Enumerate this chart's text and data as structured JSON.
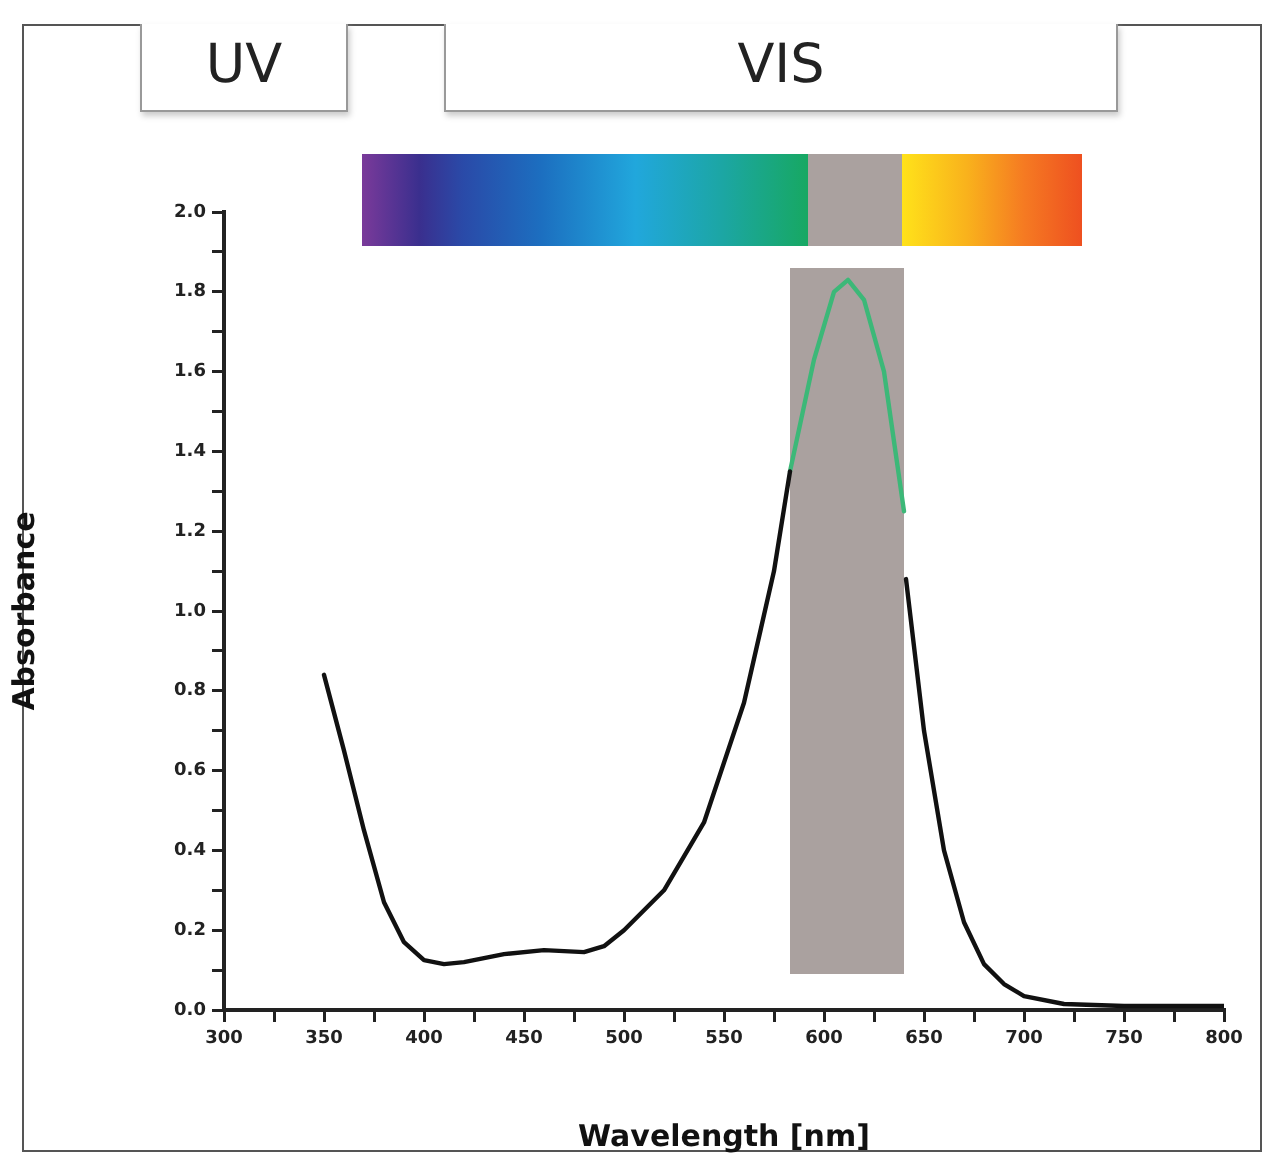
{
  "chart_data": {
    "type": "line",
    "xlabel": "Wavelength [nm]",
    "ylabel": "Absorbance",
    "annotations": [
      "UV",
      "VIS"
    ],
    "xlim": [
      300,
      800
    ],
    "xticks": [
      300,
      {
        "value": 325,
        "label": null
      },
      350,
      {
        "value": 375,
        "label": null
      },
      400,
      {
        "value": 425,
        "label": null
      },
      450,
      {
        "value": 475,
        "label": null
      },
      500,
      {
        "value": 525,
        "label": null
      },
      550,
      {
        "value": 575,
        "label": null
      },
      600,
      {
        "value": 625,
        "label": null
      },
      650,
      {
        "value": 675,
        "label": null
      },
      700,
      {
        "value": 725,
        "label": null
      },
      750,
      {
        "value": 775,
        "label": null
      },
      800
    ],
    "ylim": [
      0,
      2.0
    ],
    "yticks": [
      {
        "value": 0,
        "label": "0.0"
      },
      {
        "value": 0.1,
        "label": null
      },
      {
        "value": 0.2,
        "label": "0.2"
      },
      {
        "value": 0.3,
        "label": null
      },
      {
        "value": 0.4,
        "label": "0.4"
      },
      {
        "value": 0.5,
        "label": null
      },
      {
        "value": 0.6,
        "label": "0.6"
      },
      {
        "value": 0.7,
        "label": null
      },
      {
        "value": 0.8,
        "label": "0.8"
      },
      {
        "value": 0.9,
        "label": null
      },
      {
        "value": 1.0,
        "label": "1.0"
      },
      {
        "value": 1.1,
        "label": null
      },
      {
        "value": 1.2,
        "label": "1.2"
      },
      {
        "value": 1.3,
        "label": null
      },
      {
        "value": 1.4,
        "label": "1.4"
      },
      {
        "value": 1.5,
        "label": null
      },
      {
        "value": 1.6,
        "label": "1.6"
      },
      {
        "value": 1.7,
        "label": null
      },
      {
        "value": 1.8,
        "label": "1.8"
      },
      {
        "value": 1.9,
        "label": null
      },
      {
        "value": 2.0,
        "label": "2.0"
      }
    ],
    "grid": false,
    "legend": false,
    "marker": "none",
    "line_style": "solid",
    "bands": [
      {
        "axis": "x",
        "from": 583,
        "to": 640,
        "color": "#aaa19f"
      }
    ],
    "series": [
      {
        "color": "#111111",
        "x": [
          350,
          360,
          370,
          380,
          390,
          400,
          410,
          420,
          440,
          460,
          480,
          490,
          500,
          520,
          540,
          560,
          575,
          583
        ],
        "values": [
          0.84,
          0.65,
          0.45,
          0.27,
          0.17,
          0.125,
          0.115,
          0.12,
          0.14,
          0.15,
          0.145,
          0.16,
          0.2,
          0.3,
          0.47,
          0.77,
          1.1,
          1.35
        ]
      },
      {
        "color": "#3cb878",
        "x": [
          583,
          595,
          605,
          612,
          620,
          630,
          640
        ],
        "values": [
          1.35,
          1.63,
          1.8,
          1.83,
          1.78,
          1.6,
          1.25
        ]
      },
      {
        "color": "#111111",
        "x": [
          641,
          650,
          660,
          670,
          680,
          690,
          700,
          720,
          750,
          800
        ],
        "values": [
          1.08,
          0.7,
          0.4,
          0.22,
          0.115,
          0.065,
          0.035,
          0.015,
          0.01,
          0.01
        ]
      }
    ]
  }
}
